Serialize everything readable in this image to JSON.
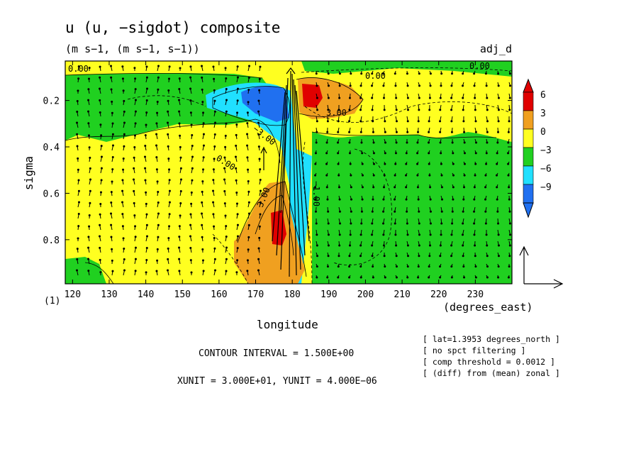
{
  "chart_data": {
    "type": "heatmap",
    "title": "u (u, −sigdot) composite",
    "subtitle": "(m s−1, (m s−1, s−1))",
    "panel_tag": "adj_d",
    "frame_tag": "(1)",
    "xlabel": "longitude",
    "xunit_label": "(degrees_east)",
    "ylabel": "sigma",
    "xlim": [
      118,
      240
    ],
    "ylim": [
      0.03,
      0.99
    ],
    "xticks": [
      "120",
      "130",
      "140",
      "150",
      "160",
      "170",
      "180",
      "190",
      "200",
      "210",
      "220",
      "230"
    ],
    "yticks": [
      "0.2",
      "0.4",
      "0.6",
      "0.8"
    ],
    "colorbar": {
      "labels": [
        "6",
        "3",
        "0",
        "−3",
        "−6",
        "−9"
      ],
      "colors": [
        "#e00000",
        "#f0a020",
        "#ffff20",
        "#20d020",
        "#20e0ff",
        "#2070f0"
      ]
    },
    "contour_labels": [
      {
        "text": "0.00"
      },
      {
        "text": "0.00"
      },
      {
        "text": "0.00"
      },
      {
        "text": "0.00"
      },
      {
        "text": "3.00"
      },
      {
        "text": "−3.00"
      },
      {
        "text": "3.00"
      },
      {
        "text": "−1.00"
      }
    ],
    "annotations": {
      "contour_interval": "CONTOUR INTERVAL = 1.500E+00",
      "units": "XUNIT = 3.000E+01, YUNIT = 4.000E−06",
      "notes": [
        "[ lat=1.3953 degrees_north ]",
        "[ no spct filtering ]",
        "[ comp threshold = 0.0012 ]",
        "[ (diff) from (mean) zonal ]"
      ]
    }
  }
}
